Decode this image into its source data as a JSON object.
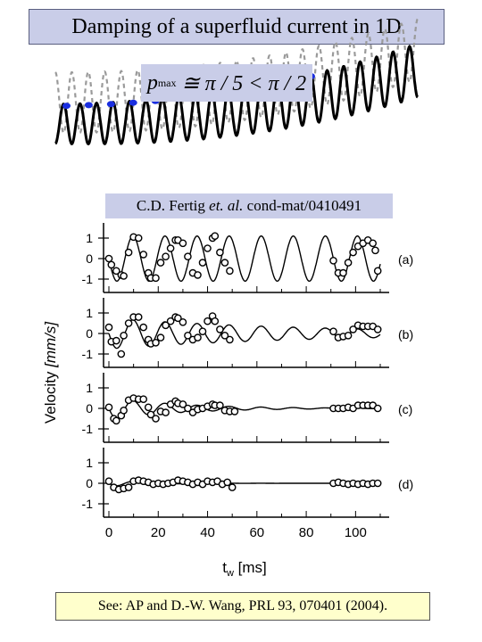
{
  "title": "Damping of a superfluid current in 1D",
  "formula": {
    "symbol": "p",
    "subscript": "max",
    "relation": "≅ π / 5 < π / 2"
  },
  "citation": {
    "authors": "C.D. Fertig",
    "etal": "et. al.",
    "ref": "cond-mat/0410491"
  },
  "reference": "See: AP and D.-W. Wang, PRL 93, 070401 (2004).",
  "colors": {
    "title_bg": "#c9cde8",
    "ref_bg": "#ffffcc",
    "dots": "#1a2ee0"
  },
  "chart_data": {
    "type": "scatter",
    "ylabel": "Velocity [mm/s]",
    "xlabel": "tw [ms]",
    "xlabel_main": "t",
    "xlabel_sub": "w",
    "xlabel_unit": "[ms]",
    "ylabel_main": "Velocity",
    "ylabel_unit": "[mm/s]",
    "xlim": [
      0,
      110
    ],
    "ylim": [
      -1.3,
      1.3
    ],
    "xticks": [
      0,
      20,
      40,
      60,
      80,
      100
    ],
    "yticks": [
      1,
      0,
      -1
    ],
    "period_ms": 13,
    "panels": [
      {
        "label": "(a)",
        "amplitude": 1.1,
        "decay": 0,
        "points": [
          [
            0,
            0
          ],
          [
            1,
            -0.3
          ],
          [
            3,
            -0.6
          ],
          [
            5,
            -0.8
          ],
          [
            6,
            -0.85
          ],
          [
            8,
            0.3
          ],
          [
            10,
            1.05
          ],
          [
            12,
            1.0
          ],
          [
            14,
            0.2
          ],
          [
            16,
            -0.7
          ],
          [
            17,
            -0.95
          ],
          [
            19,
            -0.95
          ],
          [
            21,
            -0.2
          ],
          [
            23,
            0.1
          ],
          [
            25,
            0.5
          ],
          [
            27,
            0.9
          ],
          [
            28,
            0.9
          ],
          [
            30,
            0.75
          ],
          [
            32,
            0.1
          ],
          [
            34,
            -0.7
          ],
          [
            36,
            -0.8
          ],
          [
            38,
            -0.2
          ],
          [
            40,
            0.5
          ],
          [
            42,
            1.0
          ],
          [
            43,
            1.1
          ],
          [
            45,
            0.3
          ],
          [
            47,
            -0.2
          ],
          [
            49,
            -0.6
          ],
          [
            91,
            -0.1
          ],
          [
            93,
            -0.7
          ],
          [
            95,
            -0.7
          ],
          [
            97,
            -0.2
          ],
          [
            99,
            0.3
          ],
          [
            101,
            0.6
          ],
          [
            103,
            0.75
          ],
          [
            105,
            0.9
          ],
          [
            107,
            0.75
          ],
          [
            108,
            0.4
          ],
          [
            109,
            -0.6
          ]
        ]
      },
      {
        "label": "(b)",
        "amplitude": 0.75,
        "decay": 0.012,
        "points": [
          [
            0,
            0.3
          ],
          [
            1,
            -0.4
          ],
          [
            3,
            -0.35
          ],
          [
            5,
            -1.0
          ],
          [
            6,
            -0.1
          ],
          [
            8,
            0.5
          ],
          [
            10,
            0.8
          ],
          [
            12,
            0.8
          ],
          [
            14,
            0.3
          ],
          [
            16,
            -0.3
          ],
          [
            17,
            -0.5
          ],
          [
            19,
            -0.45
          ],
          [
            21,
            -0.2
          ],
          [
            23,
            0.4
          ],
          [
            25,
            0.6
          ],
          [
            27,
            0.8
          ],
          [
            28,
            0.75
          ],
          [
            30,
            0.55
          ],
          [
            32,
            -0.1
          ],
          [
            34,
            -0.3
          ],
          [
            36,
            -0.2
          ],
          [
            38,
            0.1
          ],
          [
            40,
            0.6
          ],
          [
            42,
            0.85
          ],
          [
            43,
            0.6
          ],
          [
            45,
            0.2
          ],
          [
            47,
            -0.1
          ],
          [
            49,
            -0.3
          ],
          [
            91,
            0.1
          ],
          [
            93,
            -0.2
          ],
          [
            95,
            -0.15
          ],
          [
            97,
            -0.1
          ],
          [
            99,
            0.2
          ],
          [
            101,
            0.4
          ],
          [
            103,
            0.35
          ],
          [
            105,
            0.35
          ],
          [
            107,
            0.35
          ],
          [
            109,
            0.2
          ]
        ]
      },
      {
        "label": "(c)",
        "amplitude": 0.55,
        "decay": 0.035,
        "points": [
          [
            0,
            0.05
          ],
          [
            2,
            -0.5
          ],
          [
            3,
            -0.6
          ],
          [
            5,
            -0.35
          ],
          [
            6,
            -0.1
          ],
          [
            8,
            0.4
          ],
          [
            10,
            0.5
          ],
          [
            12,
            0.45
          ],
          [
            14,
            0.45
          ],
          [
            16,
            0.05
          ],
          [
            17,
            -0.3
          ],
          [
            19,
            -0.5
          ],
          [
            21,
            -0.15
          ],
          [
            23,
            -0.2
          ],
          [
            25,
            0.2
          ],
          [
            27,
            0.35
          ],
          [
            28,
            0.25
          ],
          [
            30,
            0.2
          ],
          [
            32,
            0.0
          ],
          [
            34,
            -0.2
          ],
          [
            36,
            -0.05
          ],
          [
            38,
            0.0
          ],
          [
            40,
            0.1
          ],
          [
            42,
            0.2
          ],
          [
            43,
            0.15
          ],
          [
            45,
            0.15
          ],
          [
            47,
            -0.1
          ],
          [
            49,
            -0.15
          ],
          [
            51,
            -0.15
          ],
          [
            91,
            0.0
          ],
          [
            93,
            0.0
          ],
          [
            95,
            0.0
          ],
          [
            97,
            0.05
          ],
          [
            99,
            0.0
          ],
          [
            101,
            0.15
          ],
          [
            103,
            0.15
          ],
          [
            105,
            0.15
          ],
          [
            107,
            0.15
          ],
          [
            109,
            0.0
          ]
        ]
      },
      {
        "label": "(d)",
        "amplitude": 0.15,
        "decay": 0.06,
        "points": [
          [
            0,
            0.1
          ],
          [
            2,
            -0.2
          ],
          [
            4,
            -0.3
          ],
          [
            6,
            -0.25
          ],
          [
            8,
            -0.2
          ],
          [
            10,
            0.1
          ],
          [
            12,
            0.15
          ],
          [
            14,
            0.1
          ],
          [
            16,
            0.05
          ],
          [
            18,
            -0.05
          ],
          [
            20,
            0.0
          ],
          [
            22,
            -0.05
          ],
          [
            24,
            0.0
          ],
          [
            26,
            0.05
          ],
          [
            28,
            0.15
          ],
          [
            30,
            0.1
          ],
          [
            32,
            0.05
          ],
          [
            34,
            -0.05
          ],
          [
            36,
            0.05
          ],
          [
            38,
            -0.05
          ],
          [
            40,
            0.1
          ],
          [
            42,
            0.05
          ],
          [
            44,
            0.1
          ],
          [
            46,
            -0.05
          ],
          [
            48,
            0.05
          ],
          [
            50,
            -0.2
          ],
          [
            91,
            0.0
          ],
          [
            93,
            0.05
          ],
          [
            95,
            0.0
          ],
          [
            97,
            -0.05
          ],
          [
            99,
            0.0
          ],
          [
            101,
            -0.05
          ],
          [
            103,
            0.0
          ],
          [
            105,
            -0.05
          ],
          [
            107,
            0.0
          ],
          [
            109,
            0.0
          ]
        ]
      }
    ],
    "top_schematic": {
      "type": "line",
      "cycles": 22,
      "dot_count": 16
    }
  }
}
